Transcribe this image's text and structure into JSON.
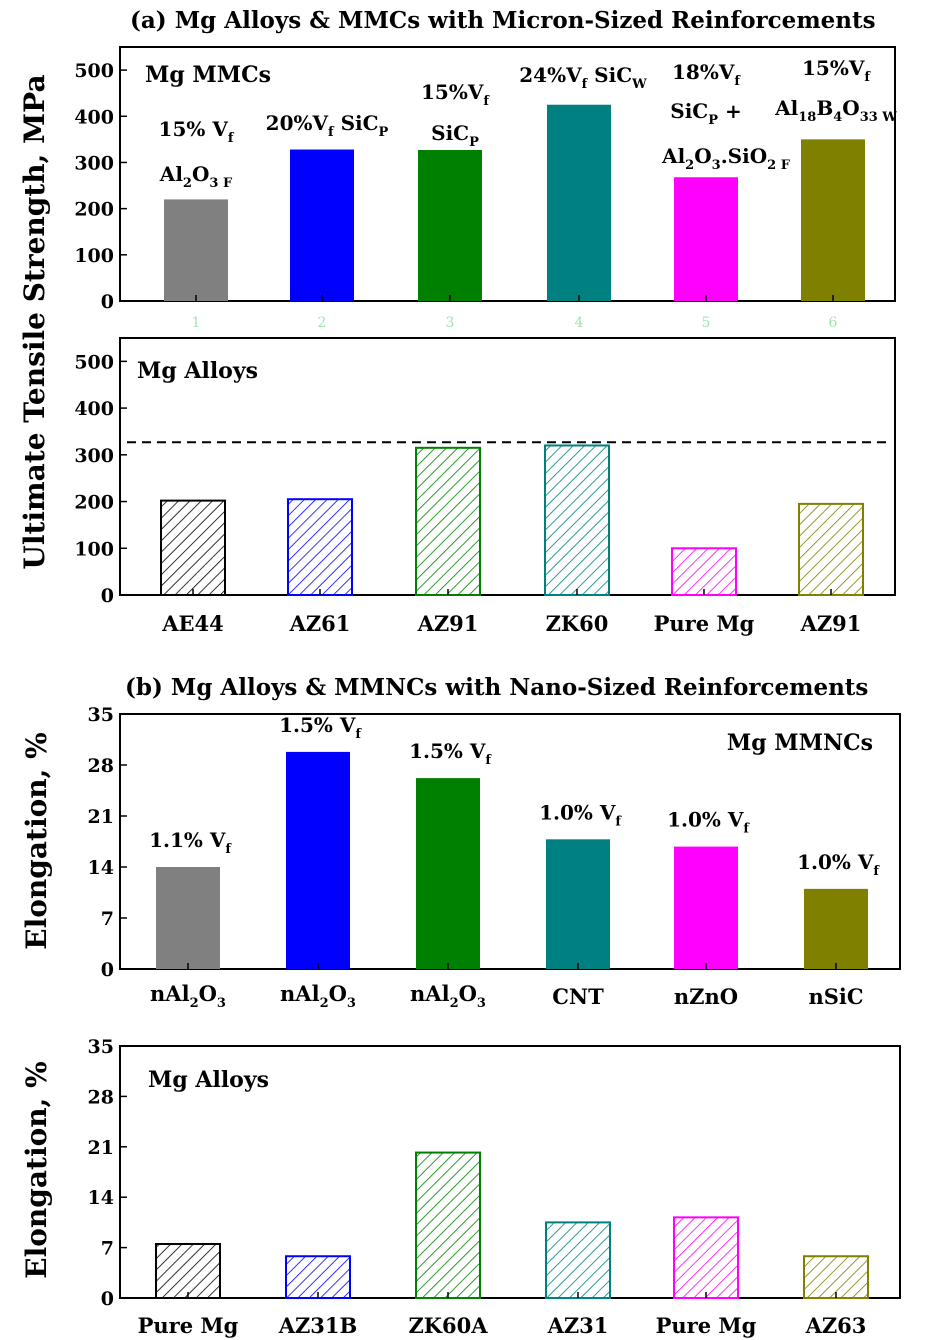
{
  "chart_data": [
    {
      "type": "bar",
      "panel_label": "(a)",
      "title": "Mg Alloys & MMCs with Micron-Sized Reinforcements",
      "inset_label": "Mg MMCs",
      "ylabel": "Ultimate Tensile Strength, MPa",
      "ylim": [
        0,
        550
      ],
      "yticks": [
        0,
        100,
        200,
        300,
        400,
        500
      ],
      "categories": [
        "1",
        "2",
        "3",
        "4",
        "5",
        "6"
      ],
      "values": [
        220,
        328,
        327,
        425,
        268,
        350
      ],
      "colors": [
        "#808080",
        "#0000ff",
        "#008000",
        "#008080",
        "#ff00ff",
        "#808000"
      ],
      "fill": "solid",
      "annotations": [
        [
          {
            "t": "15% V",
            "sub": "f"
          },
          {
            "t": "Al",
            "sub": "2"
          },
          {
            "t": "O",
            "sub": "3 F"
          }
        ],
        [
          {
            "t": "20%V",
            "sub": "f"
          },
          {
            "t": " SiC",
            "sub": "P"
          }
        ],
        [
          {
            "t": "15%V",
            "sub": "f"
          },
          {
            "t": "SiC",
            "sub": "P"
          }
        ],
        [
          {
            "t": "24%V",
            "sub": "f"
          },
          {
            "t": " SiC",
            "sub": "W"
          }
        ],
        [
          {
            "t": "18%V",
            "sub": "f"
          },
          {
            "t": "SiC",
            "sub": "P"
          },
          {
            "t": " +"
          },
          {
            "t": "Al",
            "sub": "2"
          },
          {
            "t": "O",
            "sub": "3"
          },
          {
            "t": ".SiO",
            "sub": "2 F"
          }
        ],
        [
          {
            "t": "15%V",
            "sub": "f"
          },
          {
            "t": "Al",
            "sub": "18"
          },
          {
            "t": "B",
            "sub": "4"
          },
          {
            "t": "O",
            "sub": "33 W"
          }
        ]
      ]
    },
    {
      "type": "bar",
      "inset_label": "Mg Alloys",
      "ylabel": "Ultimate Tensile Strength, MPa",
      "ylim": [
        0,
        550
      ],
      "yticks": [
        0,
        100,
        200,
        300,
        400,
        500
      ],
      "categories": [
        "AE44",
        "AZ61",
        "AZ91",
        "ZK60",
        "Pure Mg",
        "AZ91"
      ],
      "values": [
        202,
        205,
        315,
        320,
        100,
        195
      ],
      "colors": [
        "#000000",
        "#0000ff",
        "#008000",
        "#008080",
        "#ff00ff",
        "#808000"
      ],
      "fill": "hatched",
      "reference_line": 327
    },
    {
      "type": "bar",
      "panel_label": "(b)",
      "title": "Mg Alloys & MMNCs with Nano-Sized Reinforcements",
      "inset_label": "Mg MMNCs",
      "ylabel": "Elongation, %",
      "ylim": [
        0,
        35
      ],
      "yticks": [
        0,
        7,
        14,
        21,
        28,
        35
      ],
      "categories": [
        "nAl2O3",
        "nAl2O3",
        "nAl2O3",
        "CNT",
        "nZnO",
        "nSiC"
      ],
      "values": [
        14,
        29.8,
        26.2,
        17.8,
        16.8,
        11
      ],
      "colors": [
        "#808080",
        "#0000ff",
        "#008000",
        "#008080",
        "#ff00ff",
        "#808000"
      ],
      "fill": "solid",
      "annotations": [
        "1.1% V",
        "1.5% V",
        "1.5% V",
        "1.0% V",
        "1.0% V",
        "1.0% V"
      ],
      "annotation_sub": "f"
    },
    {
      "type": "bar",
      "inset_label": "Mg Alloys",
      "ylabel": "Elongation, %",
      "ylim": [
        0,
        35
      ],
      "yticks": [
        0,
        7,
        14,
        21,
        28,
        35
      ],
      "categories": [
        "Pure Mg",
        "AZ31B",
        "ZK60A",
        "AZ31",
        "Pure Mg",
        "AZ63"
      ],
      "values": [
        7.5,
        5.8,
        20.2,
        10.5,
        11.2,
        5.8
      ],
      "colors": [
        "#000000",
        "#0000ff",
        "#008000",
        "#008080",
        "#ff00ff",
        "#808000"
      ],
      "fill": "hatched"
    }
  ]
}
